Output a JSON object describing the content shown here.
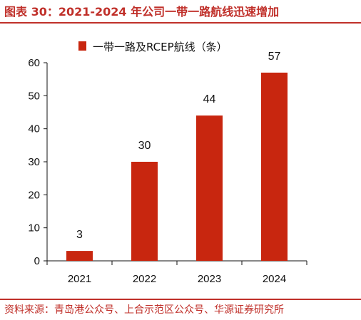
{
  "header": {
    "title": "图表 30：2021-2024 年公司一带一路航线迅速增加"
  },
  "footer": {
    "source": "资料来源：青岛港公众号、上合示范区公众号、华源证券研究所"
  },
  "colors": {
    "accent": "#c0302a",
    "bar": "#c8260f",
    "axis": "#111111"
  },
  "chart_data": {
    "type": "bar",
    "title": "",
    "xlabel": "",
    "ylabel": "",
    "categories": [
      "2021",
      "2022",
      "2023",
      "2024"
    ],
    "series": [
      {
        "name": "一带一路及RCEP航线（条）",
        "values": [
          3,
          30,
          44,
          57
        ]
      }
    ],
    "data_labels": [
      "3",
      "30",
      "44",
      "57"
    ],
    "ylim": [
      0,
      60
    ],
    "yticks": [
      0,
      10,
      20,
      30,
      40,
      50,
      60
    ],
    "grid": false,
    "legend": "top"
  }
}
